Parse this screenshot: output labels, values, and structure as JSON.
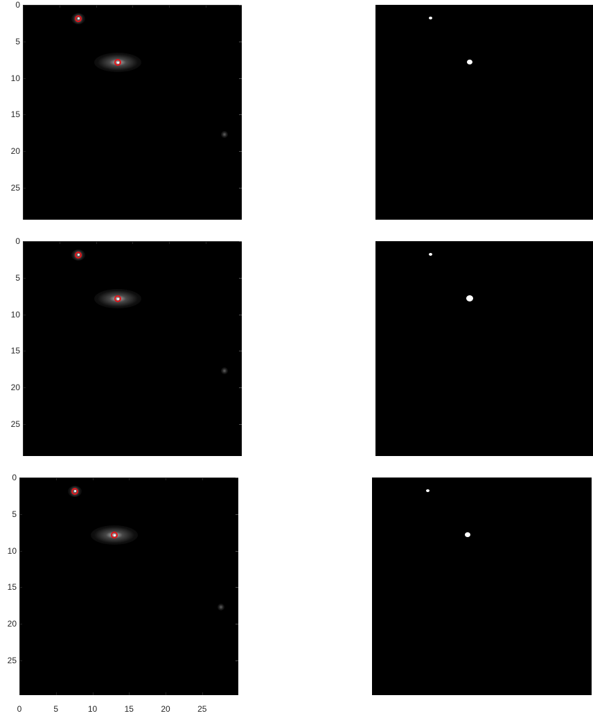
{
  "figure": {
    "rows": [
      {
        "image": {
          "ylim": [
            0,
            29
          ],
          "xlim": [
            0,
            30
          ],
          "markers": [
            {
              "x": 7.6,
              "y": 1.5
            },
            {
              "x": 13.0,
              "y": 7.5
            }
          ],
          "faint_sources": [
            {
              "x": 27.6,
              "y": 17.4
            }
          ]
        },
        "mask": {
          "blobs": [
            {
              "x": 7.6,
              "y": 1.5,
              "size": "small"
            },
            {
              "x": 13.0,
              "y": 7.5,
              "size": "medium"
            }
          ]
        }
      },
      {
        "image": {
          "ylim": [
            0,
            29
          ],
          "xlim": [
            0,
            30
          ],
          "markers": [
            {
              "x": 7.6,
              "y": 1.5
            },
            {
              "x": 13.0,
              "y": 7.5
            }
          ],
          "faint_sources": [
            {
              "x": 27.6,
              "y": 17.4
            }
          ]
        },
        "mask": {
          "blobs": [
            {
              "x": 7.6,
              "y": 1.5,
              "size": "small"
            },
            {
              "x": 13.0,
              "y": 7.5,
              "size": "large"
            }
          ]
        }
      },
      {
        "image": {
          "ylim": [
            0,
            29
          ],
          "xlim": [
            0,
            30
          ],
          "markers": [
            {
              "x": 7.6,
              "y": 1.5
            },
            {
              "x": 13.0,
              "y": 7.5
            }
          ],
          "faint_sources": [
            {
              "x": 27.6,
              "y": 17.4
            }
          ]
        },
        "mask": {
          "blobs": [
            {
              "x": 7.6,
              "y": 1.5,
              "size": "small"
            },
            {
              "x": 13.0,
              "y": 7.5,
              "size": "medium"
            }
          ]
        }
      }
    ],
    "y_tick_labels": [
      "0",
      "5",
      "10",
      "15",
      "20",
      "25"
    ],
    "x_tick_labels": [
      "0",
      "5",
      "10",
      "15",
      "20",
      "25"
    ],
    "colors": {
      "marker": "#e0141a",
      "axis": "#262626",
      "background": "#000000",
      "mask_foreground": "#ffffff"
    }
  }
}
